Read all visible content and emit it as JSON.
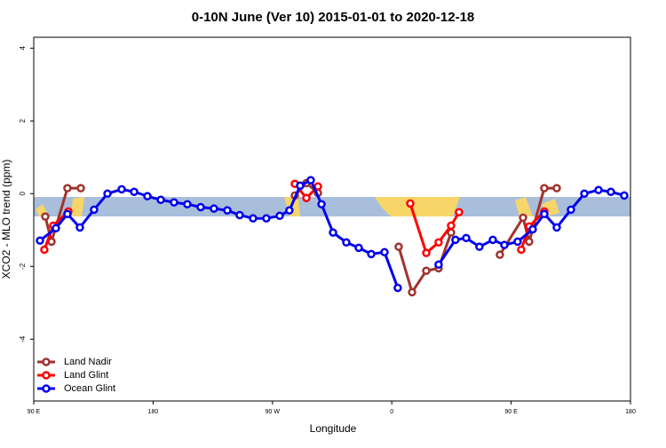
{
  "chart_data": {
    "type": "line",
    "title": "0-10N June (Ver 10)   2015-01-01 to 2020-12-18",
    "x_label": "Longitude",
    "y_label": "XCO2 - MLO trend (ppm)",
    "xlim": [
      90,
      540
    ],
    "ylim": [
      -5.7,
      4.3
    ],
    "xticks": [
      {
        "value": 90,
        "label": "90 E"
      },
      {
        "value": 180,
        "label": "180"
      },
      {
        "value": 270,
        "label": "90 W"
      },
      {
        "value": 360,
        "label": "0"
      },
      {
        "value": 450,
        "label": "90 E"
      },
      {
        "value": 540,
        "label": "180"
      }
    ],
    "yticks": [
      -4,
      -2,
      0,
      2,
      4
    ],
    "legend": "bottom-left",
    "series": [
      {
        "name": "Land Nadir",
        "color": "#a0332f",
        "x": [
          98.7,
          103.4,
          115.4,
          125.5,
          null,
          286.9,
          295.6,
          304.3,
          null,
          365.2,
          375.3,
          386,
          395.3,
          404.7,
          null,
          441.5,
          459,
          463.6,
          475,
          484.4
        ],
        "values": [
          -0.63,
          -1.32,
          0.15,
          0.15,
          null,
          -0.05,
          0.29,
          0.02,
          null,
          -1.46,
          -2.71,
          -2.12,
          -2.05,
          -1.07,
          null,
          -1.68,
          -0.66,
          -1.32,
          0.15,
          0.15
        ]
      },
      {
        "name": "Land Glint",
        "color": "#ff0000",
        "x": [
          98,
          104.7,
          116.1,
          null,
          286.9,
          295.6,
          304.3,
          null,
          373.9,
          386,
          395.3,
          404.7,
          410.7,
          null,
          457.6,
          463.6,
          475
        ],
        "values": [
          -1.54,
          -0.88,
          -0.49,
          null,
          0.27,
          -0.12,
          0.2,
          null,
          -0.27,
          -1.63,
          -1.34,
          -0.88,
          -0.51,
          null,
          -1.54,
          -0.9,
          -0.49
        ]
      },
      {
        "name": "Ocean Glint",
        "color": "#0000ee",
        "x": [
          94.7,
          106.7,
          115.4,
          124.8,
          135.5,
          145.6,
          156.3,
          165.7,
          175.7,
          185.8,
          195.8,
          205.8,
          215.9,
          225.9,
          236,
          245.3,
          255.4,
          265.4,
          275.5,
          282.8,
          290.9,
          298.9,
          307,
          315.7,
          325.7,
          335.1,
          344.5,
          354.5,
          364.5,
          null,
          395.3,
          408,
          416.1,
          426.1,
          436.2,
          444.9,
          454.9,
          466.3,
          475,
          484.4,
          495.1,
          505.2,
          515.9,
          525.2,
          535.3
        ],
        "values": [
          -1.29,
          -0.95,
          -0.56,
          -0.93,
          -0.44,
          0,
          0.12,
          0.05,
          -0.07,
          -0.17,
          -0.24,
          -0.29,
          -0.37,
          -0.41,
          -0.46,
          -0.59,
          -0.68,
          -0.68,
          -0.61,
          -0.46,
          0.22,
          0.37,
          -0.29,
          -1.07,
          -1.34,
          -1.49,
          -1.66,
          -1.61,
          -2.59,
          null,
          -1.95,
          -1.27,
          -1.22,
          -1.46,
          -1.27,
          -1.41,
          -1.32,
          -0.98,
          -0.56,
          -0.93,
          -0.44,
          0,
          0.1,
          0.05,
          -0.05
        ]
      }
    ]
  }
}
